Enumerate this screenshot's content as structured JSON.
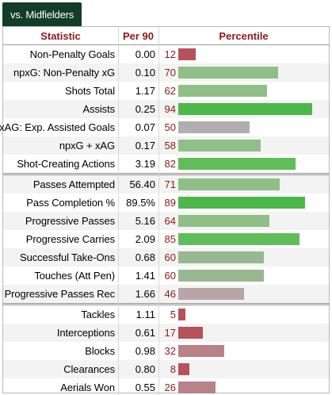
{
  "tab": {
    "label": "vs. Midfielders"
  },
  "table": {
    "headers": {
      "statistic": "Statistic",
      "per90": "Per 90",
      "percentile": "Percentile"
    },
    "groups": [
      {
        "rows": [
          {
            "stat": "Non-Penalty Goals",
            "per90": "0.00",
            "percentile": "12",
            "color": "#b5525a"
          },
          {
            "stat": "npxG: Non-Penalty xG",
            "per90": "0.10",
            "percentile": "70",
            "color": "#8fbf86"
          },
          {
            "stat": "Shots Total",
            "per90": "1.17",
            "percentile": "62",
            "color": "#8fbf86"
          },
          {
            "stat": "Assists",
            "per90": "0.25",
            "percentile": "94",
            "color": "#4cb84c"
          },
          {
            "stat": "xAG: Exp. Assisted Goals",
            "per90": "0.07",
            "percentile": "50",
            "color": "#b0aeb0"
          },
          {
            "stat": "npxG + xAG",
            "per90": "0.17",
            "percentile": "58",
            "color": "#8fbf86"
          },
          {
            "stat": "Shot-Creating Actions",
            "per90": "3.19",
            "percentile": "82",
            "color": "#5fbd5a"
          }
        ]
      },
      {
        "rows": [
          {
            "stat": "Passes Attempted",
            "per90": "56.40",
            "percentile": "71",
            "color": "#8fbf86"
          },
          {
            "stat": "Pass Completion %",
            "per90": "89.5%",
            "percentile": "89",
            "color": "#4cb84c"
          },
          {
            "stat": "Progressive Passes",
            "per90": "5.16",
            "percentile": "64",
            "color": "#8fbf86"
          },
          {
            "stat": "Progressive Carries",
            "per90": "2.09",
            "percentile": "85",
            "color": "#5fbd5a"
          },
          {
            "stat": "Successful Take-Ons",
            "per90": "0.68",
            "percentile": "60",
            "color": "#98b892"
          },
          {
            "stat": "Touches (Att Pen)",
            "per90": "1.41",
            "percentile": "60",
            "color": "#98b892"
          },
          {
            "stat": "Progressive Passes Rec",
            "per90": "1.66",
            "percentile": "46",
            "color": "#b9a5a8"
          }
        ]
      },
      {
        "rows": [
          {
            "stat": "Tackles",
            "per90": "1.11",
            "percentile": "5",
            "color": "#b5525a"
          },
          {
            "stat": "Interceptions",
            "per90": "0.61",
            "percentile": "17",
            "color": "#b5525a"
          },
          {
            "stat": "Blocks",
            "per90": "0.98",
            "percentile": "32",
            "color": "#b98188"
          },
          {
            "stat": "Clearances",
            "per90": "0.80",
            "percentile": "8",
            "color": "#b5525a"
          },
          {
            "stat": "Aerials Won",
            "per90": "0.55",
            "percentile": "26",
            "color": "#b98188"
          }
        ]
      }
    ]
  }
}
